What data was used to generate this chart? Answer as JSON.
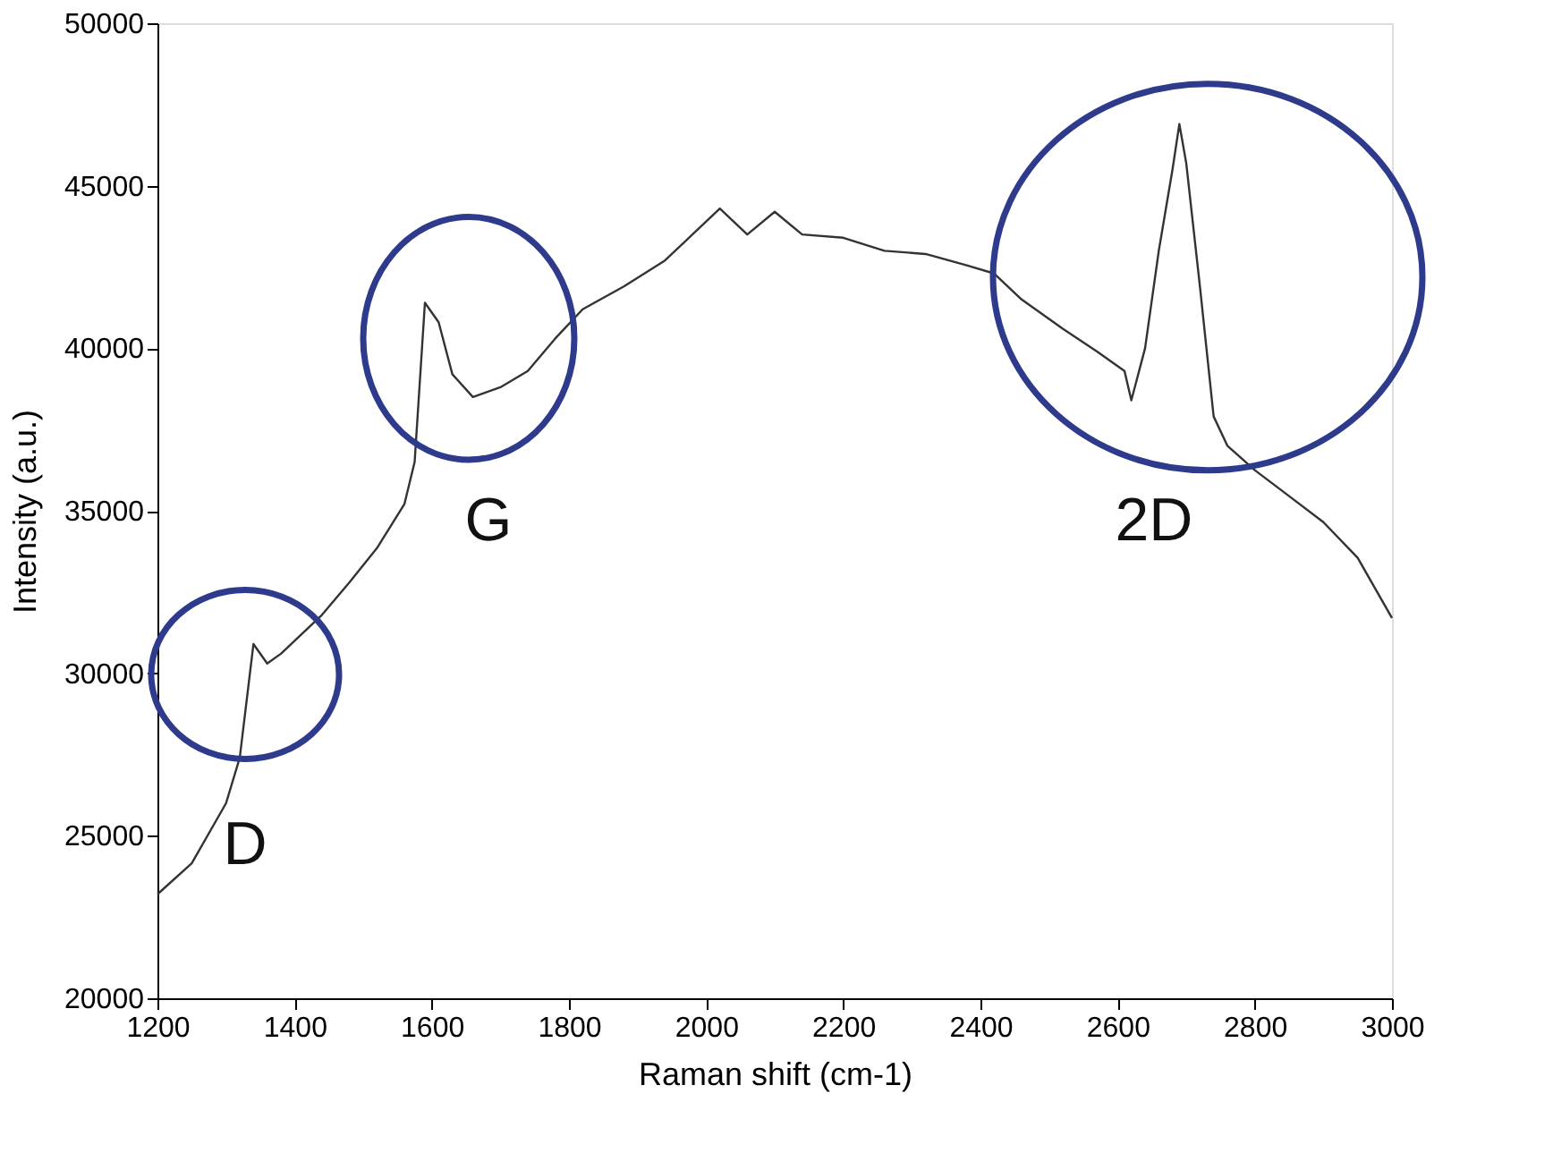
{
  "chart_data": {
    "type": "line",
    "xlabel": "Raman shift (cm-1)",
    "ylabel": "Intensity (a.u.)",
    "x": [
      1200,
      1250,
      1300,
      1320,
      1340,
      1360,
      1380,
      1400,
      1440,
      1480,
      1520,
      1560,
      1575,
      1590,
      1610,
      1630,
      1660,
      1700,
      1740,
      1780,
      1820,
      1880,
      1940,
      1980,
      2020,
      2060,
      2100,
      2140,
      2200,
      2260,
      2320,
      2380,
      2420,
      2460,
      2520,
      2570,
      2610,
      2620,
      2640,
      2660,
      2680,
      2690,
      2700,
      2720,
      2740,
      2760,
      2800,
      2850,
      2900,
      2950,
      3000
    ],
    "series": [
      {
        "color": "#333333",
        "values": [
          23200,
          24150,
          26000,
          27400,
          30900,
          30300,
          30600,
          31000,
          31800,
          32800,
          33850,
          35200,
          36500,
          41400,
          40800,
          39200,
          38500,
          38800,
          39300,
          40300,
          41200,
          41900,
          42700,
          43500,
          44300,
          43500,
          44200,
          43500,
          43400,
          43000,
          42900,
          42550,
          42300,
          41500,
          40600,
          39900,
          39300,
          38400,
          40000,
          43000,
          45500,
          46900,
          45700,
          41900,
          37900,
          37000,
          36250,
          35450,
          34650,
          33550,
          31700
        ]
      }
    ],
    "xlim": [
      1200,
      3000
    ],
    "xticks": [
      1200,
      1400,
      1600,
      1800,
      2000,
      2200,
      2400,
      2600,
      2800,
      3000
    ],
    "ylim": [
      20000,
      50000
    ],
    "yticks": [
      20000,
      25000,
      30000,
      35000,
      40000,
      45000,
      50000
    ],
    "grid": false,
    "marker": "none",
    "line_style": "solid",
    "annotations": [
      "D",
      "G",
      "2D"
    ]
  }
}
